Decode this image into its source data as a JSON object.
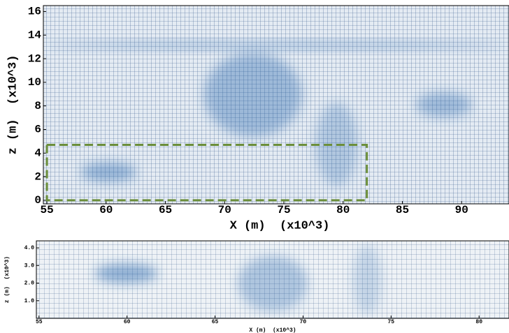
{
  "chart_data": [
    {
      "type": "image",
      "xlabel": "X (m)  (x10^3)",
      "ylabel": "z (m)  (x10^3)",
      "xlim": [
        54.7,
        94
      ],
      "ylim": [
        -0.3,
        16.5
      ],
      "xticks": [
        55,
        60,
        65,
        70,
        75,
        80,
        85,
        90
      ],
      "yticks": [
        0,
        2,
        4,
        6,
        8,
        10,
        12,
        14,
        16
      ],
      "highlight": {
        "xlim": [
          55,
          82
        ],
        "ylim": [
          0,
          4.7
        ],
        "color": "#6b8e3a"
      }
    },
    {
      "type": "image",
      "xlabel": "X (m)  (x10^3)",
      "ylabel": "z (m)  (x10^3)",
      "xlim": [
        54.85,
        81.7
      ],
      "ylim": [
        0,
        4.4
      ],
      "xticks": [
        55,
        60,
        65,
        70,
        75,
        80
      ],
      "yticks": [
        {
          "value": 1,
          "label": "1.0"
        },
        {
          "value": 2,
          "label": "2.0"
        },
        {
          "value": 3,
          "label": "3.0"
        },
        {
          "value": 4,
          "label": "4.0"
        }
      ]
    }
  ]
}
